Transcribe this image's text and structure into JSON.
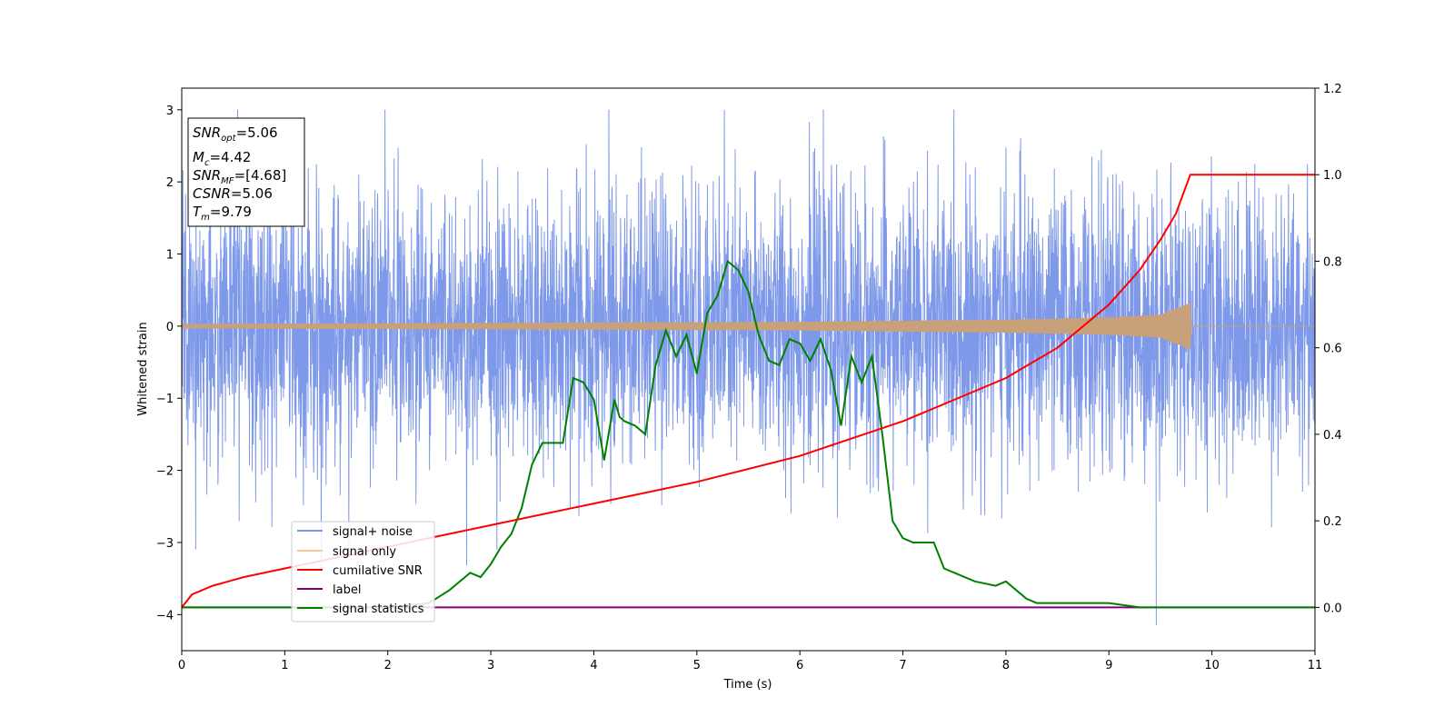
{
  "chart_data": {
    "type": "line",
    "xlabel": "Time (s)",
    "ylabel": "Whitened strain",
    "x_ticks": [
      "0",
      "1",
      "2",
      "3",
      "4",
      "5",
      "6",
      "7",
      "8",
      "9",
      "10",
      "11"
    ],
    "y_ticks": [
      "3",
      "2",
      "1",
      "0",
      "−1",
      "−2",
      "−3",
      "−4"
    ],
    "y2_ticks": [
      "1.2",
      "1.0",
      "0.8",
      "0.6",
      "0.4",
      "0.2",
      "0.0"
    ],
    "xlim": [
      0,
      11
    ],
    "ylim": [
      -4.5,
      3.3
    ],
    "y2lim": [
      -0.1,
      1.2
    ],
    "grid": false,
    "legend_position": "lower-left",
    "info_box": {
      "snr_opt": "=5.06",
      "mc": "=4.42",
      "snr_mf": "=[4.68]",
      "csnr": "=5.06",
      "tm": "=9.79"
    },
    "series": [
      {
        "name": "signal+ noise",
        "color": "#7794e8",
        "axis": "left",
        "description_range": [
          -4.15,
          3.0
        ]
      },
      {
        "name": "signal only",
        "color": "#c8a07a",
        "axis": "left",
        "x": [
          0,
          2,
          4,
          6,
          8,
          9,
          9.5,
          9.79,
          9.8,
          11
        ],
        "amplitude": [
          0.03,
          0.04,
          0.05,
          0.06,
          0.09,
          0.12,
          0.16,
          0.32,
          0.0,
          0.0
        ]
      },
      {
        "name": "cumilative SNR",
        "color": "#ff0000",
        "axis": "right",
        "x": [
          0,
          0.1,
          0.3,
          0.6,
          1,
          2,
          3,
          4,
          5,
          6,
          7,
          8,
          8.5,
          9,
          9.3,
          9.5,
          9.65,
          9.79,
          11
        ],
        "y": [
          0.0,
          0.03,
          0.05,
          0.07,
          0.09,
          0.14,
          0.19,
          0.24,
          0.29,
          0.35,
          0.43,
          0.53,
          0.6,
          0.7,
          0.78,
          0.85,
          0.91,
          1.0,
          1.0
        ]
      },
      {
        "name": "label",
        "color": "#800080",
        "axis": "right",
        "x": [
          0,
          11
        ],
        "y": [
          0.0,
          0.0
        ]
      },
      {
        "name": "signal statistics",
        "color": "#008000",
        "axis": "right",
        "x": [
          0,
          2,
          2.4,
          2.6,
          2.8,
          2.9,
          3.0,
          3.1,
          3.2,
          3.3,
          3.4,
          3.5,
          3.6,
          3.7,
          3.8,
          3.9,
          4.0,
          4.1,
          4.2,
          4.25,
          4.3,
          4.4,
          4.5,
          4.6,
          4.7,
          4.8,
          4.9,
          5.0,
          5.1,
          5.2,
          5.3,
          5.4,
          5.5,
          5.6,
          5.7,
          5.8,
          5.9,
          6.0,
          6.1,
          6.2,
          6.3,
          6.4,
          6.45,
          6.5,
          6.6,
          6.7,
          6.8,
          6.9,
          7.0,
          7.1,
          7.2,
          7.3,
          7.4,
          7.5,
          7.7,
          7.9,
          8.0,
          8.1,
          8.2,
          8.3,
          8.5,
          8.7,
          9.0,
          9.3,
          9.6,
          11
        ],
        "y": [
          0.0,
          0.0,
          0.01,
          0.04,
          0.08,
          0.07,
          0.1,
          0.14,
          0.17,
          0.23,
          0.33,
          0.38,
          0.38,
          0.38,
          0.53,
          0.52,
          0.48,
          0.34,
          0.48,
          0.44,
          0.43,
          0.42,
          0.4,
          0.56,
          0.64,
          0.58,
          0.63,
          0.54,
          0.68,
          0.72,
          0.8,
          0.78,
          0.73,
          0.63,
          0.57,
          0.56,
          0.62,
          0.61,
          0.57,
          0.62,
          0.55,
          0.42,
          0.5,
          0.58,
          0.52,
          0.58,
          0.4,
          0.2,
          0.16,
          0.15,
          0.15,
          0.15,
          0.09,
          0.08,
          0.06,
          0.05,
          0.06,
          0.04,
          0.02,
          0.01,
          0.01,
          0.01,
          0.01,
          0.0,
          0.0,
          0.0
        ]
      }
    ]
  }
}
